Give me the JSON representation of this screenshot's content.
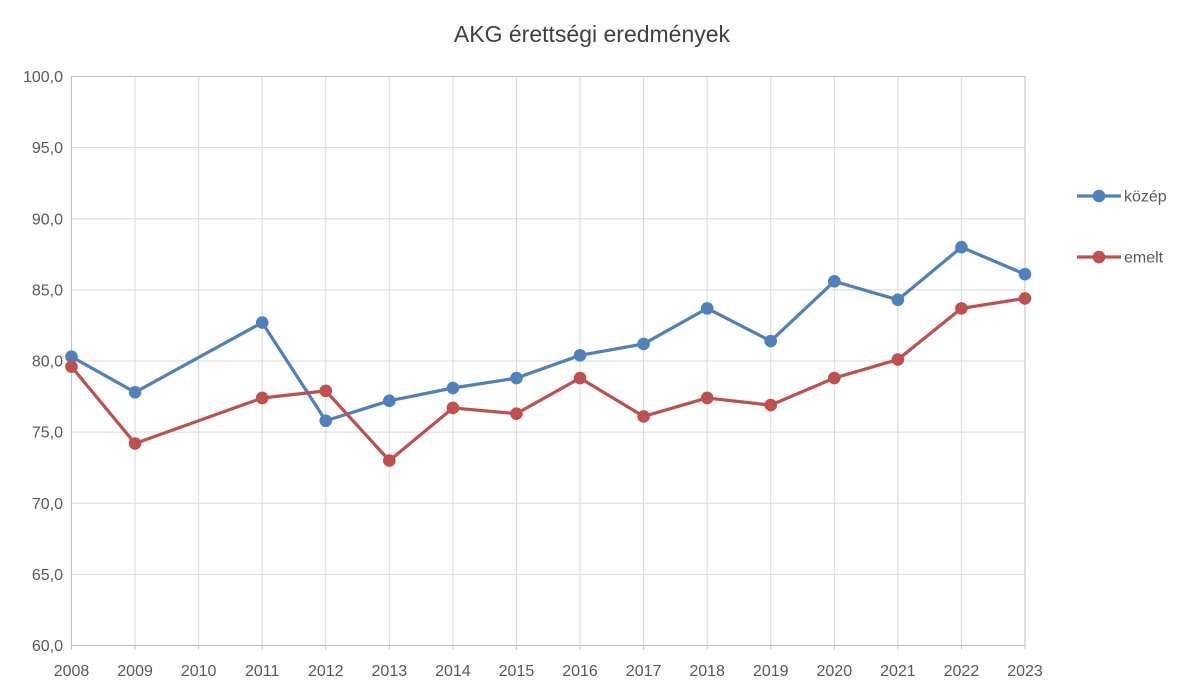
{
  "chart_data": {
    "type": "line",
    "title": "AKG érettségi eredmények",
    "categories": [
      "2008",
      "2009",
      "2010",
      "2011",
      "2012",
      "2013",
      "2014",
      "2015",
      "2016",
      "2017",
      "2018",
      "2019",
      "2020",
      "2021",
      "2022",
      "2023"
    ],
    "series": [
      {
        "name": "közép",
        "color": "#4F81BD",
        "values": [
          80.3,
          77.8,
          null,
          82.7,
          75.8,
          77.2,
          78.1,
          78.8,
          80.4,
          81.2,
          83.7,
          81.4,
          85.6,
          84.3,
          88.0,
          86.1
        ]
      },
      {
        "name": "emelt",
        "color": "#C0504D",
        "values": [
          79.6,
          74.2,
          null,
          77.4,
          77.9,
          73.0,
          76.7,
          76.3,
          78.8,
          76.1,
          77.4,
          76.9,
          78.8,
          80.1,
          83.7,
          84.4
        ]
      }
    ],
    "ylim": [
      60,
      100
    ],
    "y_step": 5,
    "y_tick_labels": [
      "100,0",
      "95,0",
      "90,0",
      "85,0",
      "80,0",
      "75,0",
      "70,0",
      "65,0",
      "60,0"
    ],
    "xlabel": "",
    "ylabel": "",
    "grid": true,
    "legend_position": "right",
    "marker": "circle",
    "missing_data_years": [
      "2010"
    ]
  },
  "style": {
    "background": "#ffffff",
    "gridline_color": "#D9D9D9",
    "axis_border_color": "#BFBFBF",
    "tick_label_color": "#595959",
    "title_color": "#404040"
  }
}
